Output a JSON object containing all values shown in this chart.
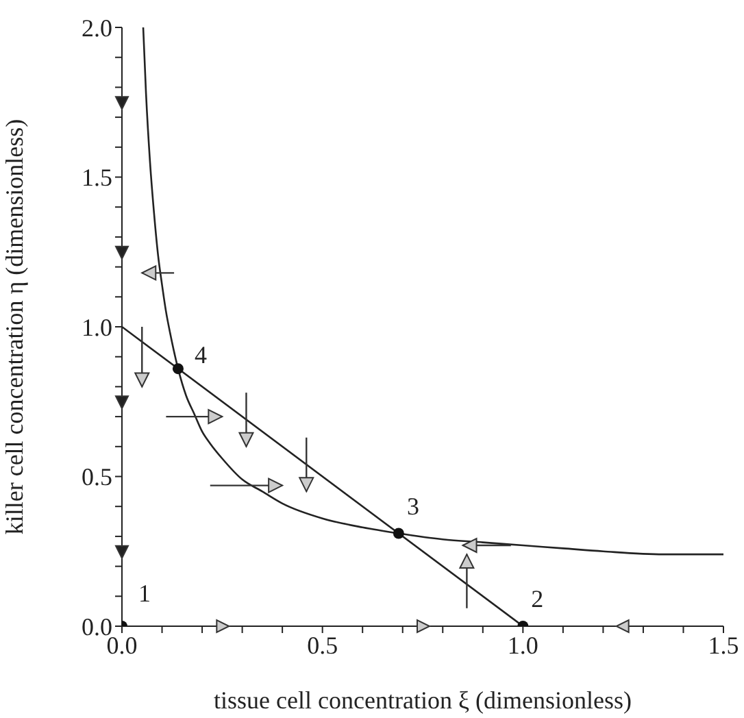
{
  "chart_data": {
    "type": "line",
    "xlabel": "tissue cell concentration ξ (dimensionless)",
    "ylabel": "killer cell concentration η (dimensionless)",
    "xlim": [
      0,
      1.5
    ],
    "ylim": [
      0,
      2
    ],
    "xticks": [
      {
        "value": 0,
        "label": "0.0"
      },
      {
        "value": 0.1,
        "label": null
      },
      {
        "value": 0.2,
        "label": null
      },
      {
        "value": 0.3,
        "label": null
      },
      {
        "value": 0.4,
        "label": null
      },
      0.5,
      {
        "value": 0.6,
        "label": null
      },
      {
        "value": 0.7,
        "label": null
      },
      {
        "value": 0.8,
        "label": null
      },
      {
        "value": 0.9,
        "label": null
      },
      {
        "value": 1,
        "label": "1.0"
      },
      {
        "value": 1.1,
        "label": null
      },
      {
        "value": 1.2,
        "label": null
      },
      {
        "value": 1.3,
        "label": null
      },
      {
        "value": 1.4,
        "label": null
      },
      1.5
    ],
    "yticks": [
      {
        "value": 0,
        "label": "0.0"
      },
      {
        "value": 0.1,
        "label": null
      },
      {
        "value": 0.2,
        "label": null
      },
      {
        "value": 0.3,
        "label": null
      },
      {
        "value": 0.4,
        "label": null
      },
      0.5,
      {
        "value": 0.6,
        "label": null
      },
      {
        "value": 0.7,
        "label": null
      },
      {
        "value": 0.8,
        "label": null
      },
      {
        "value": 0.9,
        "label": null
      },
      {
        "value": 1,
        "label": "1.0"
      },
      {
        "value": 1.1,
        "label": null
      },
      {
        "value": 1.2,
        "label": null
      },
      {
        "value": 1.3,
        "label": null
      },
      {
        "value": 1.4,
        "label": null
      },
      1.5,
      {
        "value": 1.6,
        "label": null
      },
      {
        "value": 1.7,
        "label": null
      },
      {
        "value": 1.8,
        "label": null
      },
      {
        "value": 1.9,
        "label": null
      },
      {
        "value": 2,
        "label": "2.0"
      }
    ],
    "grid": false,
    "legend": false,
    "marker": "none",
    "line_style": "solid",
    "series": [
      {
        "color": "#222222",
        "x": [
          0,
          1
        ],
        "values": [
          1,
          0
        ]
      },
      {
        "color": "#222222",
        "x": [
          0.053,
          0.06,
          0.07,
          0.08,
          0.09,
          0.1,
          0.11,
          0.12,
          0.14,
          0.16,
          0.18,
          0.2,
          0.22,
          0.25,
          0.3,
          0.35,
          0.4,
          0.5,
          0.6,
          0.69,
          0.8,
          0.9,
          1,
          1.1,
          1.2,
          1.35,
          1.5
        ],
        "values": [
          2,
          1.78,
          1.55,
          1.38,
          1.24,
          1.14,
          1.05,
          0.98,
          0.86,
          0.77,
          0.71,
          0.65,
          0.61,
          0.56,
          0.49,
          0.45,
          0.41,
          0.36,
          0.33,
          0.31,
          0.29,
          0.28,
          0.27,
          0.26,
          0.25,
          0.24,
          0.24
        ]
      },
      {
        "type": "scatter",
        "color": "#111111",
        "marker": "circle",
        "x": [
          0,
          1,
          0.69,
          0.14
        ],
        "values": [
          0,
          0,
          0.31,
          0.86
        ]
      }
    ],
    "annotations": [
      {
        "text": "1",
        "x": 0,
        "y": 0
      },
      {
        "text": "2",
        "x": 1,
        "y": 0
      },
      {
        "text": "3",
        "x": 0.69,
        "y": 0.31
      },
      {
        "text": "4",
        "x": 0.14,
        "y": 0.86
      }
    ]
  }
}
